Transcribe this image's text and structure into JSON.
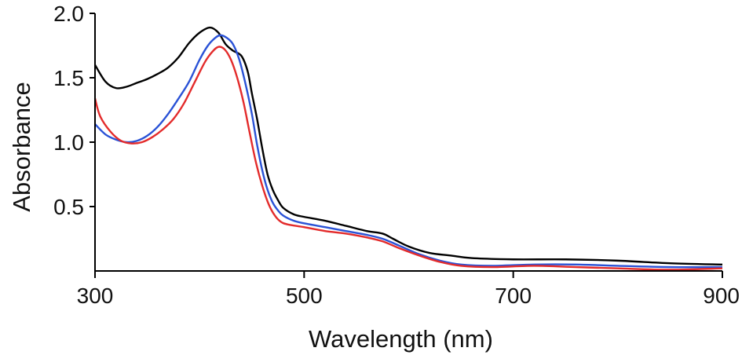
{
  "chart_data": {
    "type": "line",
    "title": "",
    "xlabel": "Wavelength (nm)",
    "ylabel": "Absorbance",
    "xlim": [
      300,
      900
    ],
    "ylim": [
      0,
      2.0
    ],
    "x_ticks": [
      300,
      500,
      700,
      900
    ],
    "x_tick_labels": [
      "300",
      "500",
      "700",
      "900"
    ],
    "y_ticks": [
      0.5,
      1.0,
      1.5,
      2.0
    ],
    "y_tick_labels": [
      "0.5",
      "1.0",
      "1.5",
      "2.0"
    ],
    "grid": false,
    "legend": "none",
    "series": [
      {
        "name": "black",
        "color": "#000000",
        "points": [
          [
            300,
            1.6
          ],
          [
            310,
            1.47
          ],
          [
            320,
            1.42
          ],
          [
            330,
            1.43
          ],
          [
            340,
            1.46
          ],
          [
            350,
            1.49
          ],
          [
            360,
            1.53
          ],
          [
            370,
            1.58
          ],
          [
            380,
            1.66
          ],
          [
            390,
            1.77
          ],
          [
            400,
            1.85
          ],
          [
            410,
            1.89
          ],
          [
            418,
            1.85
          ],
          [
            425,
            1.76
          ],
          [
            432,
            1.71
          ],
          [
            440,
            1.67
          ],
          [
            446,
            1.55
          ],
          [
            450,
            1.38
          ],
          [
            455,
            1.18
          ],
          [
            460,
            0.95
          ],
          [
            465,
            0.75
          ],
          [
            470,
            0.63
          ],
          [
            475,
            0.55
          ],
          [
            480,
            0.49
          ],
          [
            490,
            0.44
          ],
          [
            500,
            0.42
          ],
          [
            520,
            0.39
          ],
          [
            540,
            0.35
          ],
          [
            560,
            0.31
          ],
          [
            575,
            0.29
          ],
          [
            585,
            0.25
          ],
          [
            600,
            0.19
          ],
          [
            620,
            0.14
          ],
          [
            640,
            0.12
          ],
          [
            660,
            0.1
          ],
          [
            700,
            0.09
          ],
          [
            750,
            0.09
          ],
          [
            800,
            0.08
          ],
          [
            850,
            0.06
          ],
          [
            900,
            0.05
          ]
        ]
      },
      {
        "name": "blue",
        "color": "#2a52d6",
        "points": [
          [
            300,
            1.14
          ],
          [
            310,
            1.06
          ],
          [
            320,
            1.02
          ],
          [
            330,
            1.0
          ],
          [
            340,
            1.01
          ],
          [
            350,
            1.05
          ],
          [
            360,
            1.12
          ],
          [
            370,
            1.22
          ],
          [
            380,
            1.34
          ],
          [
            390,
            1.47
          ],
          [
            400,
            1.64
          ],
          [
            408,
            1.75
          ],
          [
            415,
            1.81
          ],
          [
            420,
            1.83
          ],
          [
            426,
            1.81
          ],
          [
            432,
            1.76
          ],
          [
            438,
            1.64
          ],
          [
            444,
            1.45
          ],
          [
            450,
            1.22
          ],
          [
            455,
            0.98
          ],
          [
            460,
            0.78
          ],
          [
            465,
            0.63
          ],
          [
            470,
            0.53
          ],
          [
            475,
            0.47
          ],
          [
            480,
            0.43
          ],
          [
            490,
            0.39
          ],
          [
            500,
            0.37
          ],
          [
            520,
            0.34
          ],
          [
            540,
            0.31
          ],
          [
            560,
            0.28
          ],
          [
            575,
            0.25
          ],
          [
            590,
            0.2
          ],
          [
            610,
            0.13
          ],
          [
            630,
            0.08
          ],
          [
            650,
            0.05
          ],
          [
            680,
            0.04
          ],
          [
            720,
            0.05
          ],
          [
            760,
            0.05
          ],
          [
            800,
            0.04
          ],
          [
            850,
            0.03
          ],
          [
            900,
            0.03
          ]
        ]
      },
      {
        "name": "red",
        "color": "#e32b2b",
        "points": [
          [
            300,
            1.34
          ],
          [
            305,
            1.2
          ],
          [
            315,
            1.08
          ],
          [
            325,
            1.01
          ],
          [
            335,
            0.99
          ],
          [
            345,
            1.0
          ],
          [
            355,
            1.04
          ],
          [
            365,
            1.1
          ],
          [
            375,
            1.18
          ],
          [
            385,
            1.3
          ],
          [
            395,
            1.46
          ],
          [
            405,
            1.62
          ],
          [
            412,
            1.7
          ],
          [
            418,
            1.74
          ],
          [
            424,
            1.72
          ],
          [
            430,
            1.64
          ],
          [
            436,
            1.5
          ],
          [
            442,
            1.31
          ],
          [
            448,
            1.07
          ],
          [
            454,
            0.84
          ],
          [
            460,
            0.66
          ],
          [
            466,
            0.52
          ],
          [
            472,
            0.43
          ],
          [
            478,
            0.38
          ],
          [
            485,
            0.36
          ],
          [
            500,
            0.34
          ],
          [
            520,
            0.31
          ],
          [
            540,
            0.29
          ],
          [
            560,
            0.26
          ],
          [
            575,
            0.23
          ],
          [
            590,
            0.18
          ],
          [
            610,
            0.12
          ],
          [
            630,
            0.07
          ],
          [
            650,
            0.04
          ],
          [
            680,
            0.03
          ],
          [
            720,
            0.04
          ],
          [
            760,
            0.03
          ],
          [
            800,
            0.02
          ],
          [
            850,
            0.01
          ],
          [
            900,
            0.02
          ]
        ]
      }
    ]
  }
}
